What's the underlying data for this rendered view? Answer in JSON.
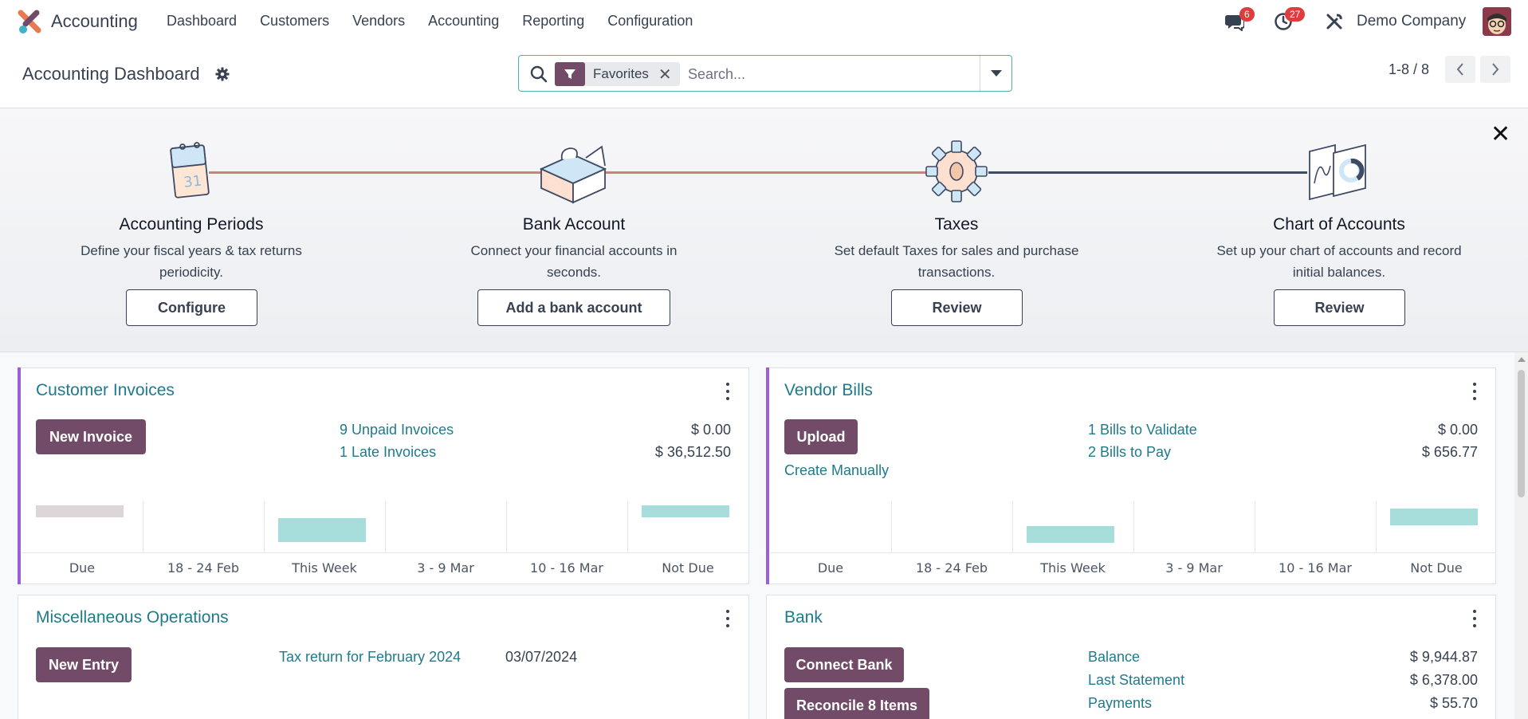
{
  "navbar": {
    "app_name": "Accounting",
    "menu": [
      "Dashboard",
      "Customers",
      "Vendors",
      "Accounting",
      "Reporting",
      "Configuration"
    ],
    "messages_badge": "6",
    "activities_badge": "27",
    "company": "Demo Company"
  },
  "control_panel": {
    "title": "Accounting Dashboard",
    "search": {
      "facet_label": "Favorites",
      "placeholder": "Search..."
    },
    "pager": "1-8 / 8"
  },
  "onboarding": {
    "steps": [
      {
        "title": "Accounting Periods",
        "desc": [
          "Define your fiscal years & tax returns",
          "periodicity."
        ],
        "button": "Configure",
        "calendar_day": "31"
      },
      {
        "title": "Bank Account",
        "desc": [
          "Connect your financial accounts in",
          "seconds."
        ],
        "button": "Add a bank account"
      },
      {
        "title": "Taxes",
        "desc": [
          "Set default Taxes for sales and purchase",
          "transactions."
        ],
        "button": "Review"
      },
      {
        "title": "Chart of Accounts",
        "desc": [
          "Set up your chart of accounts and record",
          "initial balances."
        ],
        "button": "Review"
      }
    ]
  },
  "cards": {
    "customer_invoices": {
      "title": "Customer Invoices",
      "button": "New Invoice",
      "rows": [
        {
          "label": "9 Unpaid Invoices",
          "amount": "$ 0.00"
        },
        {
          "label": "1 Late Invoices",
          "amount": "$ 36,512.50"
        }
      ],
      "chart_labels": [
        "Due",
        "18 - 24 Feb",
        "This Week",
        "3 - 9 Mar",
        "10 - 16 Mar",
        "Not Due"
      ]
    },
    "vendor_bills": {
      "title": "Vendor Bills",
      "button": "Upload",
      "create_link": "Create Manually",
      "rows": [
        {
          "label": "1 Bills to Validate",
          "amount": "$ 0.00"
        },
        {
          "label": "2 Bills to Pay",
          "amount": "$ 656.77"
        }
      ],
      "chart_labels": [
        "Due",
        "18 - 24 Feb",
        "This Week",
        "3 - 9 Mar",
        "10 - 16 Mar",
        "Not Due"
      ]
    },
    "misc_operations": {
      "title": "Miscellaneous Operations",
      "button": "New Entry",
      "link": "Tax return for February 2024",
      "date": "03/07/2024"
    },
    "bank": {
      "title": "Bank",
      "buttons": [
        "Connect Bank",
        "Reconcile 8 Items"
      ],
      "rows": [
        {
          "label": "Balance",
          "amount": "$ 9,944.87"
        },
        {
          "label": "Last Statement",
          "amount": "$ 6,378.00"
        },
        {
          "label": "Payments",
          "amount": "$ 55.70"
        }
      ]
    }
  },
  "colors": {
    "primary": "#714b67",
    "link": "#1f7a8c",
    "card_accent": "#9b5fdc",
    "bar_teal": "#a6dcd9",
    "bar_grey": "#dcd6d8",
    "badge": "#e03c3c"
  }
}
